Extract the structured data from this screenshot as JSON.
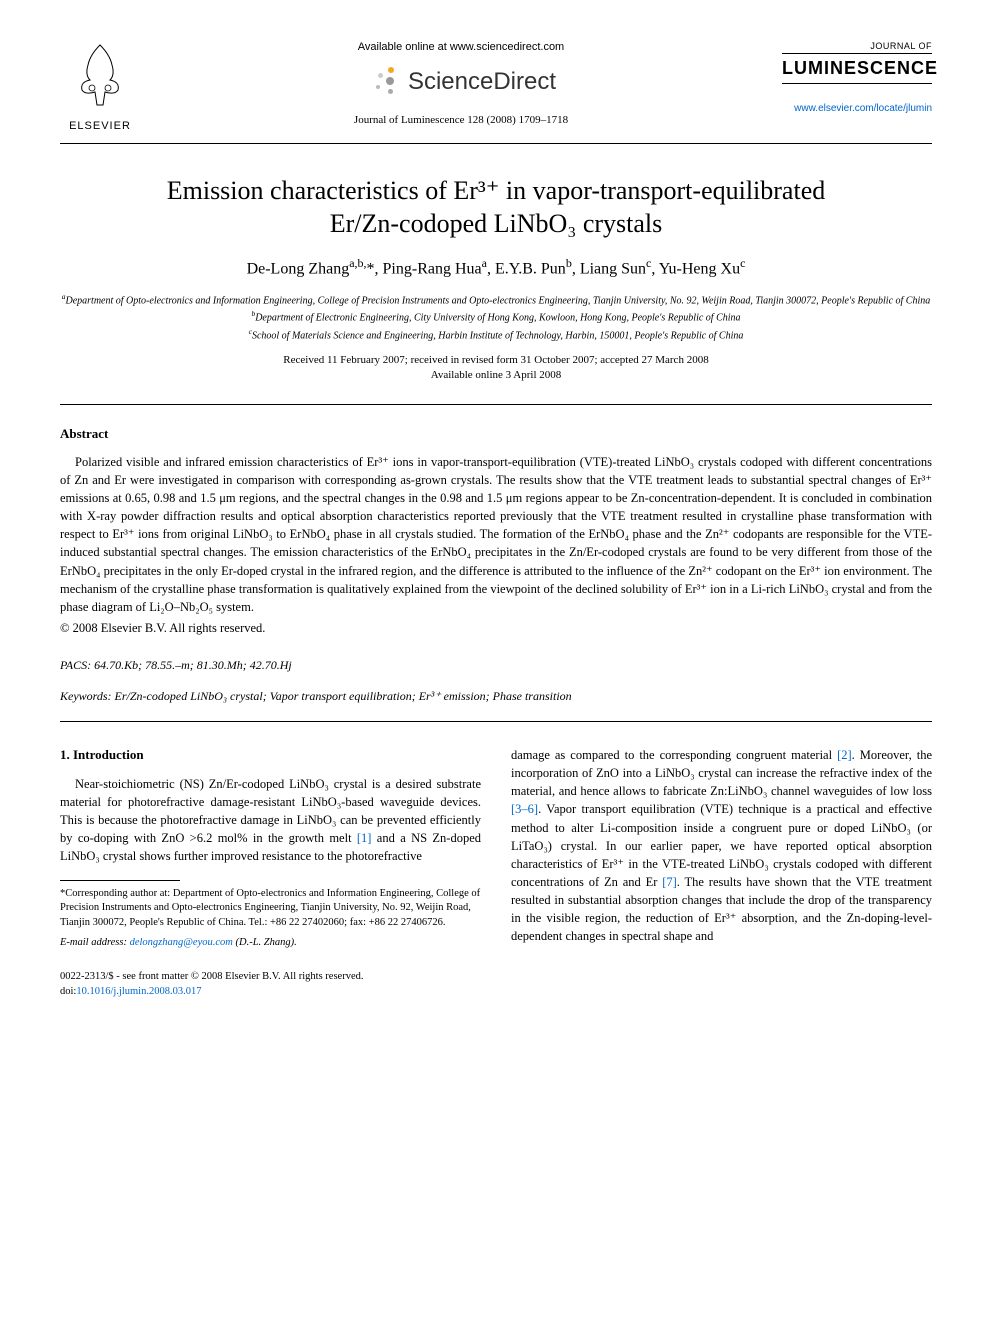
{
  "header": {
    "available_online": "Available online at www.sciencedirect.com",
    "sciencedirect_label": "ScienceDirect",
    "journal_ref": "Journal of Luminescence 128 (2008) 1709–1718",
    "elsevier_label": "ELSEVIER",
    "journal_of": "JOURNAL OF",
    "journal_name": "LUMINESCENCE",
    "journal_url": "www.elsevier.com/locate/jlumin"
  },
  "title": {
    "line1": "Emission characteristics of Er³⁺ in vapor-transport-equilibrated",
    "line2": "Er/Zn-codoped LiNbO₃ crystals"
  },
  "authors_html": "De-Long Zhang<sup>a,b,</sup>*, Ping-Rang Hua<sup>a</sup>, E.Y.B. Pun<sup>b</sup>, Liang Sun<sup>c</sup>, Yu-Heng Xu<sup>c</sup>",
  "affiliations": {
    "a": "Department of Opto-electronics and Information Engineering, College of Precision Instruments and Opto-electronics Engineering, Tianjin University, No. 92, Weijin Road, Tianjin 300072, People's Republic of China",
    "b": "Department of Electronic Engineering, City University of Hong Kong, Kowloon, Hong Kong, People's Republic of China",
    "c": "School of Materials Science and Engineering, Harbin Institute of Technology, Harbin, 150001, People's Republic of China"
  },
  "dates": {
    "received": "Received 11 February 2007; received in revised form 31 October 2007; accepted 27 March 2008",
    "available": "Available online 3 April 2008"
  },
  "abstract": {
    "heading": "Abstract",
    "text_html": "Polarized visible and infrared emission characteristics of Er³⁺ ions in vapor-transport-equilibration (VTE)-treated LiNbO₃ crystals codoped with different concentrations of Zn and Er were investigated in comparison with corresponding as-grown crystals. The results show that the VTE treatment leads to substantial spectral changes of Er³⁺ emissions at 0.65, 0.98 and 1.5 μm regions, and the spectral changes in the 0.98 and 1.5 μm regions appear to be Zn-concentration-dependent. It is concluded in combination with X-ray powder diffraction results and optical absorption characteristics reported previously that the VTE treatment resulted in crystalline phase transformation with respect to Er³⁺ ions from original LiNbO₃ to ErNbO₄ phase in all crystals studied. The formation of the ErNbO₄ phase and the Zn²⁺ codopants are responsible for the VTE-induced substantial spectral changes. The emission characteristics of the ErNbO₄ precipitates in the Zn/Er-codoped crystals are found to be very different from those of the ErNbO₄ precipitates in the only Er-doped crystal in the infrared region, and the difference is attributed to the influence of the Zn²⁺ codopant on the Er³⁺ ion environment. The mechanism of the crystalline phase transformation is qualitatively explained from the viewpoint of the declined solubility of Er³⁺ ion in a Li-rich LiNbO₃ crystal and from the phase diagram of Li₂O–Nb₂O₅ system.",
    "copyright": "© 2008 Elsevier B.V. All rights reserved."
  },
  "pacs": "PACS: 64.70.Kb; 78.55.–m; 81.30.Mh; 42.70.Hj",
  "keywords": "Keywords: Er/Zn-codoped LiNbO₃ crystal; Vapor transport equilibration; Er³⁺ emission; Phase transition",
  "intro": {
    "heading": "1. Introduction",
    "col1_html": "Near-stoichiometric (NS) Zn/Er-codoped LiNbO₃ crystal is a desired substrate material for photorefractive damage-resistant LiNbO₃-based waveguide devices. This is because the photorefractive damage in LiNbO₃ can be prevented efficiently by co-doping with ZnO &gt;6.2 mol% in the growth melt <span class=\"ref-link\">[1]</span> and a NS Zn-doped LiNbO₃ crystal shows further improved resistance to the photorefractive",
    "col2_html": "damage as compared to the corresponding congruent material <span class=\"ref-link\">[2]</span>. Moreover, the incorporation of ZnO into a LiNbO₃ crystal can increase the refractive index of the material, and hence allows to fabricate Zn:LiNbO₃ channel waveguides of low loss <span class=\"ref-link\">[3–6]</span>. Vapor transport equilibration (VTE) technique is a practical and effective method to alter Li-composition inside a congruent pure or doped LiNbO₃ (or LiTaO₃) crystal. In our earlier paper, we have reported optical absorption characteristics of Er³⁺ in the VTE-treated LiNbO₃ crystals codoped with different concentrations of Zn and Er <span class=\"ref-link\">[7]</span>. The results have shown that the VTE treatment resulted in substantial absorption changes that include the drop of the transparency in the visible region, the reduction of Er³⁺ absorption, and the Zn-doping-level-dependent changes in spectral shape and"
  },
  "footnote": {
    "corresponding": "*Corresponding author at: Department of Opto-electronics and Information Engineering, College of Precision Instruments and Opto-electronics Engineering, Tianjin University, No. 92, Weijin Road, Tianjin 300072, People's Republic of China. Tel.: +86 22 27402060; fax: +86 22 27406726.",
    "email_label": "E-mail address:",
    "email": "delongzhang@eyou.com",
    "email_author": "(D.-L. Zhang)."
  },
  "bottom": {
    "issn": "0022-2313/$ - see front matter © 2008 Elsevier B.V. All rights reserved.",
    "doi_label": "doi:",
    "doi": "10.1016/j.jlumin.2008.03.017"
  },
  "colors": {
    "link": "#0066cc",
    "text": "#000000",
    "bg": "#ffffff"
  }
}
